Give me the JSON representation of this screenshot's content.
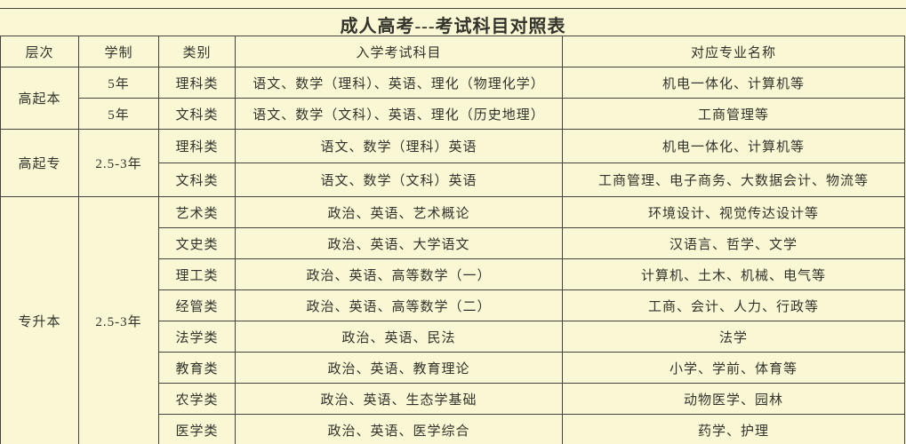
{
  "title": "成人高考---考试科目对照表",
  "colors": {
    "background": "#faf7d5",
    "border": "#45453d",
    "text": "#33332b"
  },
  "table": {
    "headers": [
      "层次",
      "学制",
      "类别",
      "入学考试科目",
      "对应专业名称"
    ],
    "sections": [
      {
        "level": "高起本",
        "rows": [
          {
            "duration": "5年",
            "category": "理科类",
            "subjects": "语文、数学（理科）、英语、理化（物理化学）",
            "majors": "机电一体化、计算机等"
          },
          {
            "duration": "5年",
            "category": "文科类",
            "subjects": "语文、数学（文科）、英语、理化（历史地理）",
            "majors": "工商管理等"
          }
        ]
      },
      {
        "level": "高起专",
        "duration": "2.5-3年",
        "rows": [
          {
            "category": "理科类",
            "subjects": "语文、数学（理科）英语",
            "majors": "机电一体化、计算机等"
          },
          {
            "category": "文科类",
            "subjects": "语文、数学（文科）英语",
            "majors": "工商管理、电子商务、大数据会计、物流等"
          }
        ]
      },
      {
        "level": "专升本",
        "duration": "2.5-3年",
        "rows": [
          {
            "category": "艺术类",
            "subjects": "政治、英语、艺术概论",
            "majors": "环境设计、视觉传达设计等"
          },
          {
            "category": "文史类",
            "subjects": "政治、英语、大学语文",
            "majors": "汉语言、哲学、文学"
          },
          {
            "category": "理工类",
            "subjects": "政治、英语、高等数学（一）",
            "majors": "计算机、土木、机械、电气等"
          },
          {
            "category": "经管类",
            "subjects": "政治、英语、高等数学（二）",
            "majors": "工商、会计、人力、行政等"
          },
          {
            "category": "法学类",
            "subjects": "政治、英语、民法",
            "majors": "法学"
          },
          {
            "category": "教育类",
            "subjects": "政治、英语、教育理论",
            "majors": "小学、学前、体育等"
          },
          {
            "category": "农学类",
            "subjects": "政治、英语、生态学基础",
            "majors": "动物医学、园林"
          },
          {
            "category": "医学类",
            "subjects": "政治、英语、医学综合",
            "majors": "药学、护理"
          }
        ]
      }
    ]
  }
}
